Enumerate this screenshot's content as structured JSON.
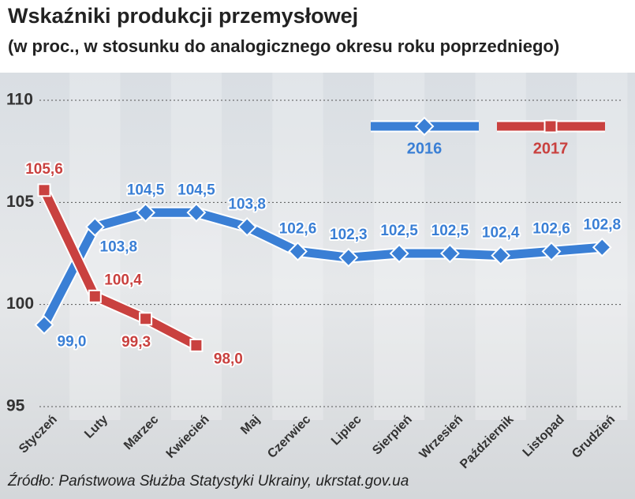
{
  "chart_data": {
    "type": "line",
    "title": "Wskaźniki produkcji przemysłowej",
    "subtitle": "(w proc., w stosunku do analogicznego okresu roku poprzedniego)",
    "source": "Źródło: Państwowa Służba Statystyki Ukrainy, ukrstat.gov.ua",
    "categories": [
      "Styczeń",
      "Luty",
      "Marzec",
      "Kwiecień",
      "Maj",
      "Czerwiec",
      "Lipiec",
      "Sierpień",
      "Wrzesień",
      "Październik",
      "Listopad",
      "Grudzień"
    ],
    "series": [
      {
        "name": "2016",
        "color": "#3a7fd5",
        "marker": "diamond",
        "values": [
          99.0,
          103.8,
          104.5,
          104.5,
          103.8,
          102.6,
          102.3,
          102.5,
          102.5,
          102.4,
          102.6,
          102.8
        ],
        "value_labels": [
          "99,0",
          "103,8",
          "104,5",
          "104,5",
          "103,8",
          "102,6",
          "102,3",
          "102,5",
          "102,5",
          "102,4",
          "102,6",
          "102,8"
        ]
      },
      {
        "name": "2017",
        "color": "#c9413f",
        "marker": "square",
        "values": [
          105.6,
          100.4,
          99.3,
          98.0,
          null,
          null,
          null,
          null,
          null,
          null,
          null,
          null
        ],
        "value_labels": [
          "105,6",
          "100,4",
          "99,3",
          "98,0",
          null,
          null,
          null,
          null,
          null,
          null,
          null,
          null
        ]
      }
    ],
    "ylim": [
      95,
      110
    ],
    "yticks": [
      95,
      100,
      105,
      110
    ],
    "grid": true,
    "legend": "upper right"
  }
}
